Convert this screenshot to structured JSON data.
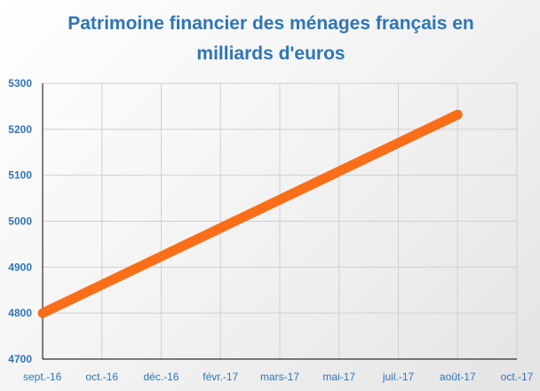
{
  "chart_data": {
    "type": "line",
    "title": "Patrimoine financier des ménages français en milliards d'euros",
    "xlabel": "",
    "ylabel": "",
    "x_ticks": [
      "sept.-16",
      "oct.-16",
      "déc.-16",
      "févr.-17",
      "mars-17",
      "mai-17",
      "juil.-17",
      "août-17",
      "oct.-17"
    ],
    "ylim": [
      4700,
      5300
    ],
    "y_ticks": [
      4700,
      4800,
      4900,
      5000,
      5100,
      5200,
      5300
    ],
    "grid": true,
    "legend": "none",
    "series": [
      {
        "x": [
          "sept.-16",
          "août-17"
        ],
        "values": [
          4800,
          5232
        ],
        "color": "#fb6e19"
      }
    ]
  }
}
